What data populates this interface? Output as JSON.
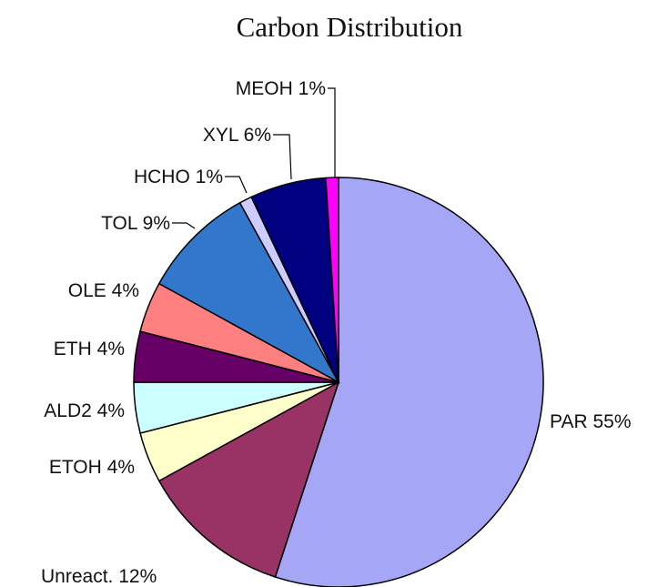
{
  "chart_data": {
    "type": "pie",
    "title": "Carbon Distribution",
    "categories": [
      "PAR",
      "Unreact.",
      "ETOH",
      "ALD2",
      "ETH",
      "OLE",
      "TOL",
      "HCHO",
      "XYL",
      "MEOH"
    ],
    "values": [
      55,
      12,
      4,
      4,
      4,
      4,
      9,
      1,
      6,
      1
    ],
    "value_labels": [
      "55%",
      "12%",
      "4%",
      "4%",
      "4%",
      "4%",
      "9%",
      "1%",
      "6%",
      "1%"
    ],
    "colors": [
      "#a6a6f7",
      "#993366",
      "#ffffcc",
      "#ccffff",
      "#660066",
      "#ff8080",
      "#3377cc",
      "#ccccff",
      "#000080",
      "#ff00ff"
    ]
  }
}
